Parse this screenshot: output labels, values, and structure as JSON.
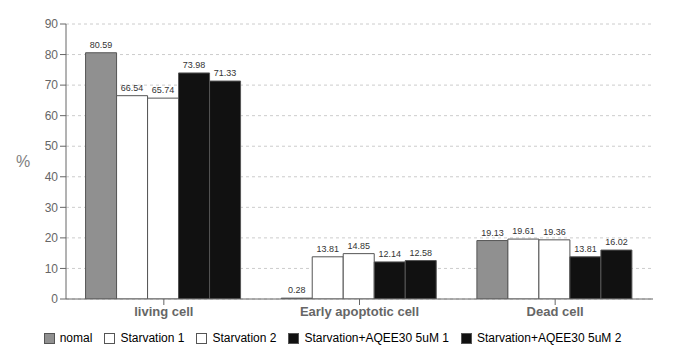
{
  "chart_data": {
    "type": "bar",
    "categories": [
      "living cell",
      "Early apoptotic cell",
      "Dead cell"
    ],
    "series": [
      {
        "name": "nomal",
        "color": "#909090",
        "values": [
          80.59,
          0.28,
          19.13
        ]
      },
      {
        "name": "Starvation 1",
        "color": "#ffffff",
        "values": [
          66.54,
          13.81,
          19.61
        ]
      },
      {
        "name": "Starvation 2",
        "color": "#ffffff",
        "values": [
          65.74,
          14.85,
          19.36
        ]
      },
      {
        "name": "Starvation+AQEE30 5uM 1",
        "color": "#111111",
        "values": [
          73.98,
          12.14,
          13.81
        ]
      },
      {
        "name": "Starvation+AQEE30 5uM 2",
        "color": "#111111",
        "values": [
          71.33,
          12.58,
          16.02
        ]
      }
    ],
    "ylabel": "%",
    "ylim": [
      0,
      90
    ],
    "yticks": [
      0,
      10,
      20,
      30,
      40,
      50,
      60,
      70,
      80,
      90
    ],
    "grid": true,
    "data_labels": true,
    "legend": "bottom"
  }
}
